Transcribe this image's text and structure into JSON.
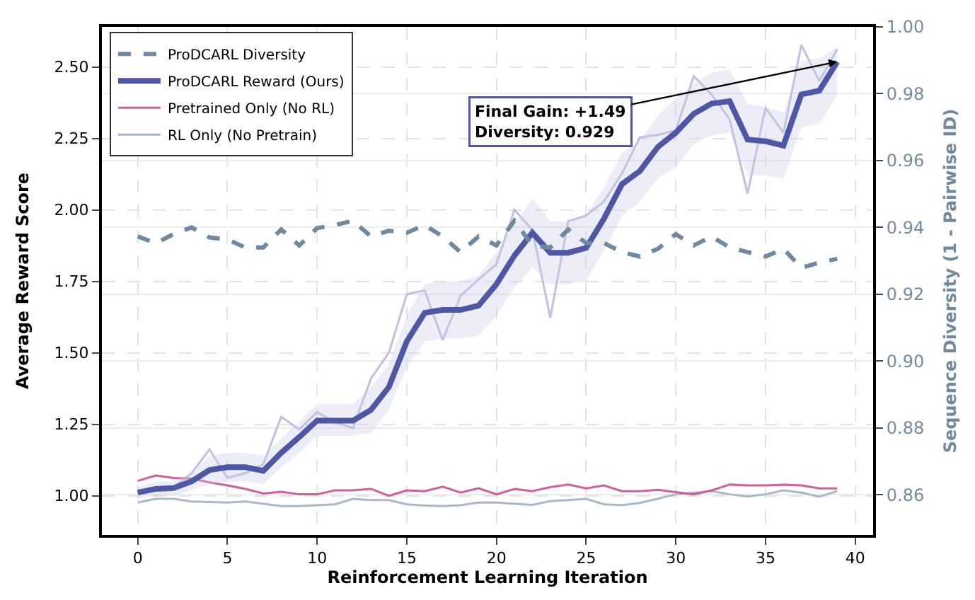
{
  "chart_data": {
    "type": "line",
    "xlabel": "Reinforcement Learning Iteration",
    "ylabel": "Average Reward Score",
    "y2label": "Sequence Diversity (1 - Pairwise ID)",
    "x": [
      0,
      1,
      2,
      3,
      4,
      5,
      6,
      7,
      8,
      9,
      10,
      11,
      12,
      13,
      14,
      15,
      16,
      17,
      18,
      19,
      20,
      21,
      22,
      23,
      24,
      25,
      26,
      27,
      28,
      29,
      30,
      31,
      32,
      33,
      34,
      35,
      36,
      37,
      38,
      39
    ],
    "xlim": [
      -2,
      41
    ],
    "xticks": [
      0,
      5,
      10,
      15,
      20,
      25,
      30,
      35,
      40
    ],
    "ylim": [
      0.863,
      2.64
    ],
    "yticks": [
      {
        "value": 1.0,
        "label": "1.00"
      },
      {
        "value": 1.25,
        "label": "1.25"
      },
      {
        "value": 1.5,
        "label": "1.50"
      },
      {
        "value": 1.75,
        "label": "1.75"
      },
      {
        "value": 2.0,
        "label": "2.00"
      },
      {
        "value": 2.25,
        "label": "2.25"
      },
      {
        "value": 2.5,
        "label": "2.50"
      }
    ],
    "y2lim": [
      0.848,
      1.0
    ],
    "y2ticks": [
      {
        "value": 0.86,
        "label": "0.86"
      },
      {
        "value": 0.88,
        "label": "0.88"
      },
      {
        "value": 0.9,
        "label": "0.90"
      },
      {
        "value": 0.92,
        "label": "0.92"
      },
      {
        "value": 0.94,
        "label": "0.94"
      },
      {
        "value": 0.96,
        "label": "0.96"
      },
      {
        "value": 0.98,
        "label": "0.98"
      },
      {
        "value": 1.0,
        "label": "1.00"
      }
    ],
    "grid": true,
    "legend": "top left",
    "marker": "none",
    "series": [
      {
        "name": "RL Only (No Pretrain)",
        "color": "#a8b8c8",
        "line_style": "solid",
        "values": [
          0.976,
          0.989,
          0.989,
          0.98,
          0.978,
          0.976,
          0.98,
          0.972,
          0.964,
          0.964,
          0.967,
          0.97,
          0.989,
          0.985,
          0.985,
          0.97,
          0.966,
          0.964,
          0.967,
          0.976,
          0.976,
          0.972,
          0.968,
          0.981,
          0.985,
          0.989,
          0.97,
          0.967,
          0.975,
          0.99,
          1.005,
          1.011,
          1.016,
          1.005,
          0.997,
          1.005,
          1.019,
          1.011,
          0.997,
          1.016
        ]
      },
      {
        "name": "Pretrained Only (No RL)",
        "color": "#d0609a",
        "line_style": "solid",
        "values": [
          1.052,
          1.071,
          1.062,
          1.06,
          1.047,
          1.036,
          1.024,
          1.008,
          1.014,
          1.005,
          1.005,
          1.019,
          1.019,
          1.024,
          1.0,
          1.019,
          1.016,
          1.032,
          1.011,
          1.026,
          1.005,
          1.024,
          1.016,
          1.03,
          1.039,
          1.026,
          1.036,
          1.016,
          1.016,
          1.021,
          1.013,
          1.005,
          1.019,
          1.039,
          1.036,
          1.036,
          1.039,
          1.036,
          1.026,
          1.026
        ]
      },
      {
        "color": "#a9add6",
        "line_style": "solid",
        "values": [
          1.011,
          1.03,
          1.03,
          1.079,
          1.162,
          1.063,
          1.079,
          1.11,
          1.276,
          1.232,
          1.292,
          1.257,
          1.237,
          1.41,
          1.5,
          1.705,
          1.718,
          1.544,
          1.7,
          1.757,
          1.81,
          2.0,
          1.93,
          1.623,
          1.96,
          1.98,
          2.03,
          2.128,
          2.254,
          2.262,
          2.278,
          2.467,
          2.404,
          2.317,
          2.057,
          2.357,
          2.27,
          2.577,
          2.451,
          2.562
        ]
      },
      {
        "name": "ProDCARL Reward (Ours)",
        "color": "#4e57a6",
        "line_style": "solid",
        "values": [
          1.011,
          1.024,
          1.027,
          1.05,
          1.09,
          1.1,
          1.1,
          1.087,
          1.15,
          1.205,
          1.263,
          1.263,
          1.263,
          1.3,
          1.38,
          1.54,
          1.64,
          1.65,
          1.65,
          1.665,
          1.74,
          1.84,
          1.92,
          1.85,
          1.85,
          1.867,
          1.97,
          2.09,
          2.136,
          2.22,
          2.27,
          2.336,
          2.372,
          2.38,
          2.246,
          2.24,
          2.225,
          2.404,
          2.417,
          2.518
        ],
        "lower": [
          0.99,
          1.0,
          1.0,
          1.02,
          1.04,
          1.05,
          1.05,
          1.04,
          1.1,
          1.15,
          1.21,
          1.21,
          1.21,
          1.22,
          1.3,
          1.45,
          1.54,
          1.55,
          1.55,
          1.56,
          1.63,
          1.73,
          1.8,
          1.74,
          1.74,
          1.75,
          1.86,
          1.98,
          2.03,
          2.11,
          2.15,
          2.23,
          2.26,
          2.27,
          2.12,
          2.12,
          2.11,
          2.29,
          2.3,
          2.4
        ],
        "upper": [
          1.03,
          1.05,
          1.05,
          1.08,
          1.14,
          1.15,
          1.15,
          1.14,
          1.2,
          1.26,
          1.32,
          1.32,
          1.32,
          1.38,
          1.46,
          1.63,
          1.74,
          1.75,
          1.75,
          1.77,
          1.85,
          1.95,
          2.04,
          1.96,
          1.96,
          1.98,
          2.08,
          2.2,
          2.24,
          2.33,
          2.39,
          2.44,
          2.48,
          2.49,
          2.37,
          2.36,
          2.34,
          2.52,
          2.53,
          2.57
        ]
      },
      {
        "name": "ProDCARL Diversity",
        "color": "#6f8aa0",
        "line_style": "dashed",
        "axis": "y2",
        "values": [
          0.9373,
          0.9353,
          0.938,
          0.94,
          0.937,
          0.9364,
          0.934,
          0.934,
          0.9394,
          0.9346,
          0.9398,
          0.9407,
          0.942,
          0.9373,
          0.939,
          0.9384,
          0.9407,
          0.9373,
          0.9326,
          0.9373,
          0.9346,
          0.942,
          0.9346,
          0.934,
          0.9394,
          0.9353,
          0.9353,
          0.9326,
          0.9313,
          0.9336,
          0.938,
          0.9346,
          0.9373,
          0.934,
          0.9326,
          0.9313,
          0.9336,
          0.9279,
          0.9295,
          0.9306
        ]
      }
    ],
    "annotations": [
      {
        "text": "Final Gain: +1.49\nDiversity: 0.929",
        "x": 39,
        "y": 2.518
      }
    ]
  }
}
